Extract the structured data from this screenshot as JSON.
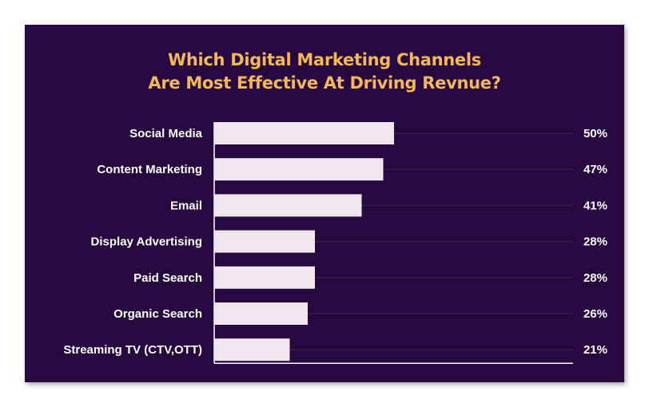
{
  "chart_data": {
    "type": "bar",
    "orientation": "horizontal",
    "title_lines": [
      "Which Digital Marketing Channels",
      "Are Most Effective At Driving Revnue?"
    ],
    "categories": [
      "Social Media",
      "Content Marketing",
      "Email",
      "Display Advertising",
      "Paid Search",
      "Organic Search",
      "Streaming TV (CTV,OTT)"
    ],
    "values": [
      50,
      47,
      41,
      28,
      28,
      26,
      21
    ],
    "value_labels": [
      "50%",
      "47%",
      "41%",
      "28%",
      "28%",
      "26%",
      "21%"
    ],
    "xlim": [
      0,
      100
    ],
    "grid": false,
    "legend": "none",
    "colors": {
      "background": "#27093f",
      "bar": "#f0e6ee",
      "title": "#f5b856",
      "text": "#ffffff"
    }
  }
}
